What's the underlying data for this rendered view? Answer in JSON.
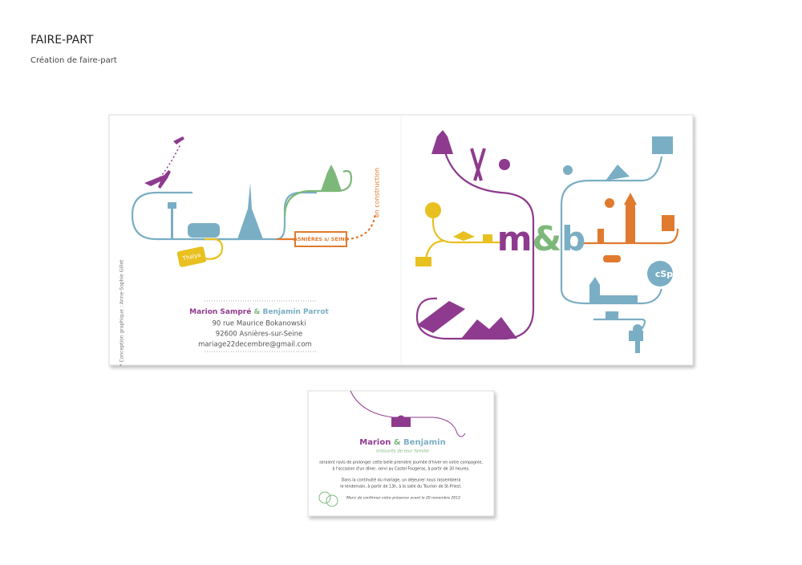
{
  "header": {
    "title": "FAIRE-PART",
    "subtitle": "Création de faire-part"
  },
  "card_front": {
    "credit": "* Conception graphique : Anne-Sophie Gillet",
    "tag": "en construction",
    "town_sign": "ASNIÈRES s/ SEINE",
    "ticket": "Thalys",
    "names": {
      "bride": "Marion Sampré",
      "and": "&",
      "groom": "Benjamin Parrot"
    },
    "address": [
      "90 rue Maurice Bokanowski",
      "92600 Asnières-sur-Seine",
      "mariage22decembre@gmail.com"
    ],
    "monogram": {
      "m": "m",
      "and": "&",
      "b": "b"
    },
    "badge": "cSp"
  },
  "card_invite": {
    "names": {
      "bride": "Marion",
      "and": "&",
      "groom": "Benjamin"
    },
    "subtitle": "entourés de leur famille",
    "paragraph1": [
      "seraient ravis de prolonger cette belle première journée d'hiver en votre compagnie,",
      "à l'occasion d'un dîner, servi au Castel Fougeras, à partir de 20 heures."
    ],
    "paragraph2": [
      "Dans la continuité du mariage, un déjeuner nous rassemblera",
      "le lendemain, à partir de 13h, à la salle du Tourion de St-Priest."
    ],
    "rsvp": "Merci de confirmer votre présence avant le 20 novembre 2012"
  }
}
